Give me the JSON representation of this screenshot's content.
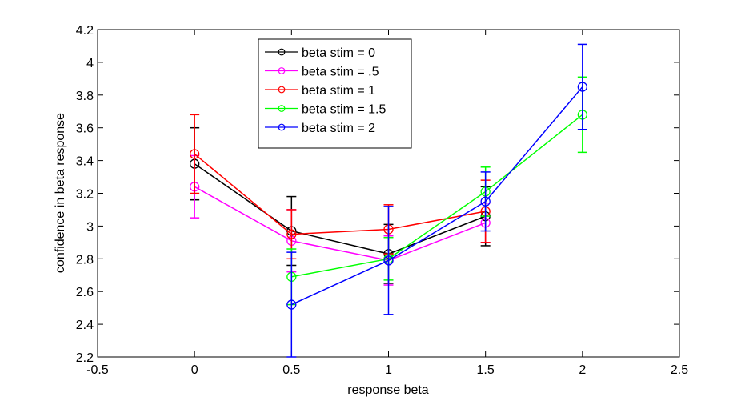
{
  "chart_data": {
    "type": "line",
    "title": "",
    "xlabel": "response beta",
    "ylabel": "confidence in beta response",
    "xlim": [
      -0.5,
      2.5
    ],
    "ylim": [
      2.2,
      4.2
    ],
    "xticks": [
      "-0.5",
      "0",
      "0.5",
      "1",
      "1.5",
      "2",
      "2.5"
    ],
    "yticks": [
      "2.2",
      "2.4",
      "2.6",
      "2.8",
      "3",
      "3.2",
      "3.4",
      "3.6",
      "3.8",
      "4",
      "4.2"
    ],
    "grid": false,
    "legend_position": "top-center",
    "series": [
      {
        "name": "beta stim = 0",
        "color": "#000000",
        "points": [
          {
            "x": 0,
            "y": 3.38,
            "err": 0.22
          },
          {
            "x": 0.5,
            "y": 2.97,
            "err": 0.21
          },
          {
            "x": 1,
            "y": 2.83,
            "err": 0.18
          },
          {
            "x": 1.5,
            "y": 3.06,
            "err": 0.18
          }
        ]
      },
      {
        "name": "beta stim = .5",
        "color": "#ff00ff",
        "points": [
          {
            "x": 0,
            "y": 3.24,
            "err": 0.19
          },
          {
            "x": 0.5,
            "y": 2.91,
            "err": 0.19
          },
          {
            "x": 1,
            "y": 2.79,
            "err": 0.15
          },
          {
            "x": 1.5,
            "y": 3.02,
            "err": 0.12
          }
        ]
      },
      {
        "name": "beta stim = 1",
        "color": "#ff0000",
        "points": [
          {
            "x": 0,
            "y": 3.44,
            "err": 0.24
          },
          {
            "x": 0.5,
            "y": 2.95,
            "err": 0.15
          },
          {
            "x": 1,
            "y": 2.98,
            "err": 0.15
          },
          {
            "x": 1.5,
            "y": 3.09,
            "err": 0.19
          }
        ]
      },
      {
        "name": "beta stim = 1.5",
        "color": "#00ff00",
        "points": [
          {
            "x": 0.5,
            "y": 2.69,
            "err": 0.17
          },
          {
            "x": 1,
            "y": 2.8,
            "err": 0.13
          },
          {
            "x": 1.5,
            "y": 3.21,
            "err": 0.15
          },
          {
            "x": 2,
            "y": 3.68,
            "err": 0.23
          }
        ]
      },
      {
        "name": "beta stim = 2",
        "color": "#0000ff",
        "points": [
          {
            "x": 0.5,
            "y": 2.52,
            "err": 0.32
          },
          {
            "x": 1,
            "y": 2.79,
            "err": 0.33
          },
          {
            "x": 1.5,
            "y": 3.15,
            "err": 0.18
          },
          {
            "x": 2,
            "y": 3.85,
            "err": 0.26
          }
        ]
      }
    ]
  }
}
